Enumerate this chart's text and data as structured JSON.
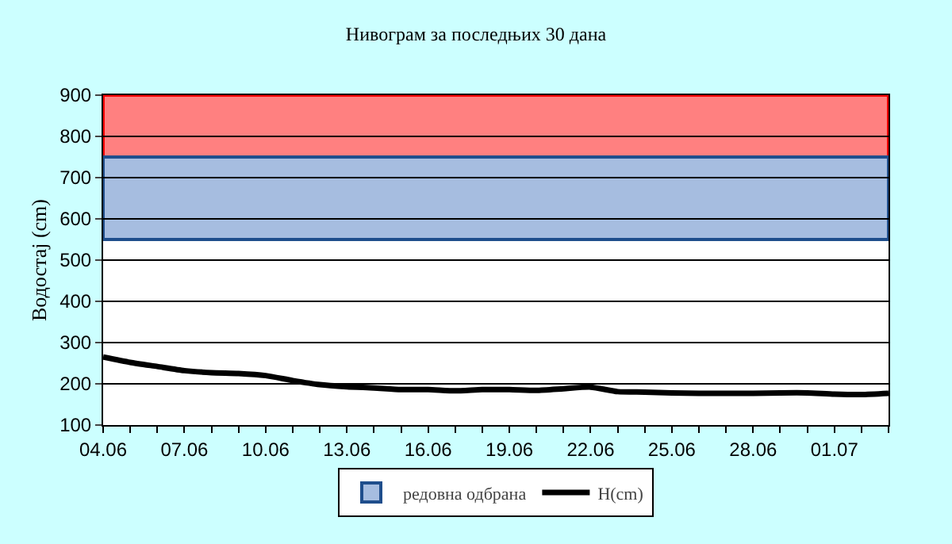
{
  "chart_data": {
    "type": "line",
    "title": "Нивограм за последњих 30 дана",
    "ylabel": "Водостај (cm)",
    "categories": [
      "04.06",
      null,
      null,
      "07.06",
      null,
      null,
      "10.06",
      null,
      null,
      "13.06",
      null,
      null,
      "16.06",
      null,
      null,
      "19.06",
      null,
      null,
      "22.06",
      null,
      null,
      "25.06",
      null,
      null,
      "28.06",
      null,
      null,
      "01.07",
      null,
      null
    ],
    "series": [
      {
        "name": "H(cm)",
        "color": "#000000",
        "values": [
          265,
          252,
          242,
          232,
          227,
          225,
          220,
          208,
          198,
          193,
          190,
          186,
          186,
          183,
          186,
          186,
          184,
          188,
          192,
          181,
          180,
          178,
          177,
          177,
          177,
          178,
          178,
          175,
          174,
          177
        ]
      }
    ],
    "ylim": [
      100,
      900
    ],
    "yticks": [
      100,
      200,
      300,
      400,
      500,
      600,
      700,
      800,
      900
    ],
    "grid": "y",
    "legend": "bottom",
    "marker": "none",
    "line_style": "solid",
    "bands": [
      {
        "axis": "y",
        "from": 750,
        "to": 900,
        "color": "#ff8080"
      },
      {
        "axis": "y",
        "from": 550,
        "to": 750,
        "label": "редовна одбрана",
        "color": "#a6bde0"
      }
    ]
  }
}
